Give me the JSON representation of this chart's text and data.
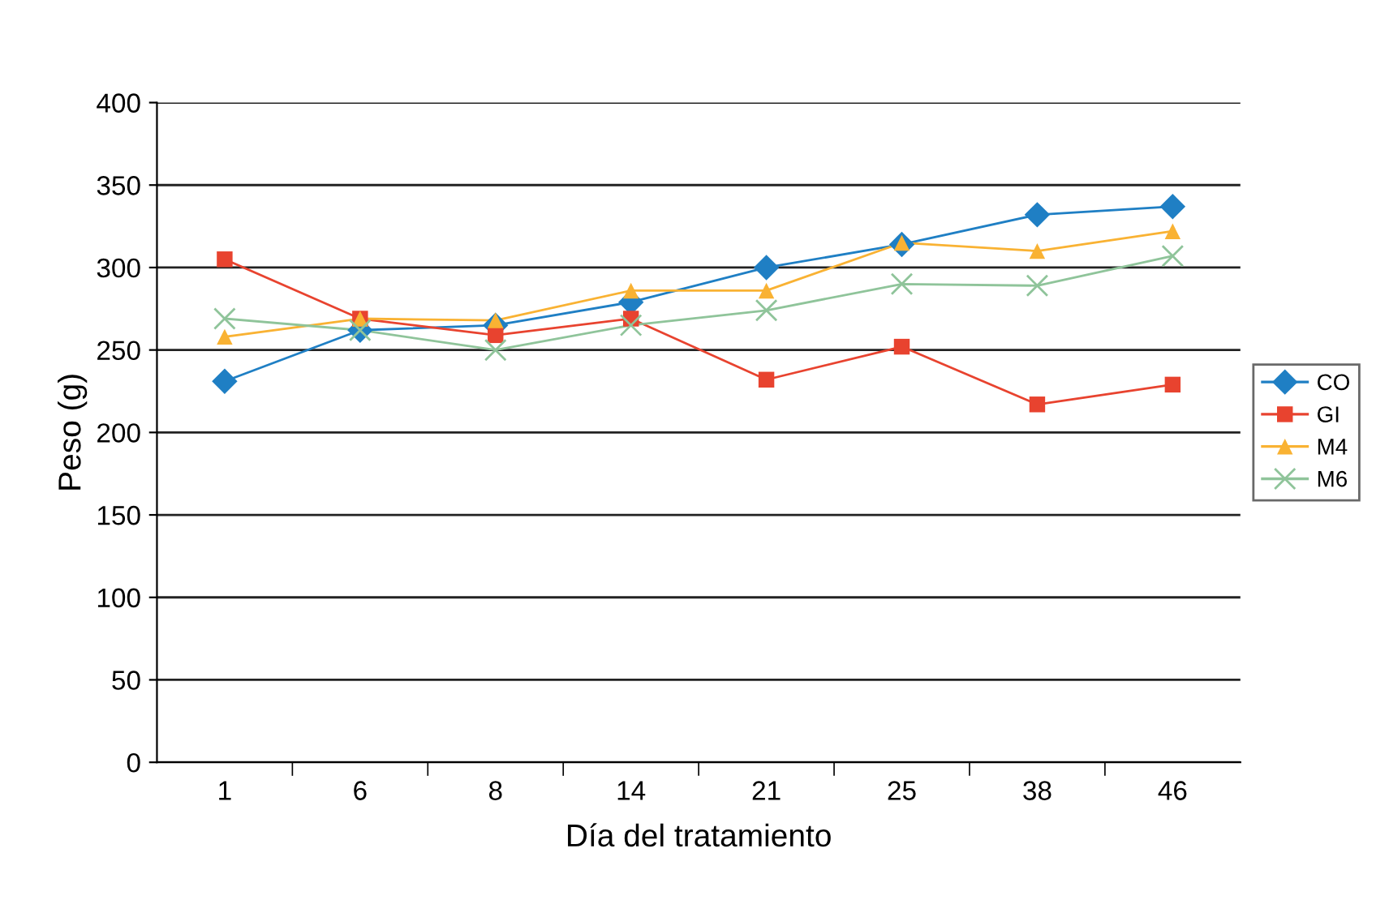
{
  "chart_data": {
    "type": "line",
    "xlabel": "Día del tratamiento",
    "ylabel": "Peso (g)",
    "categories": [
      "1",
      "6",
      "8",
      "14",
      "21",
      "25",
      "38",
      "46"
    ],
    "ylim": [
      0,
      400
    ],
    "yticks": [
      0,
      50,
      100,
      150,
      200,
      250,
      300,
      350,
      400
    ],
    "grid": "y",
    "legend": "right",
    "series": [
      {
        "name": "CO",
        "color": "#1f7fc4",
        "marker": "diamond",
        "values": [
          231,
          262,
          265,
          279,
          300,
          314,
          332,
          337
        ]
      },
      {
        "name": "GI",
        "color": "#e8432f",
        "marker": "square",
        "values": [
          305,
          269,
          259,
          269,
          232,
          252,
          217,
          229
        ]
      },
      {
        "name": "M4",
        "color": "#f9b233",
        "marker": "triangle",
        "values": [
          258,
          269,
          268,
          286,
          286,
          315,
          310,
          322
        ]
      },
      {
        "name": "M6",
        "color": "#8fc49a",
        "marker": "cross",
        "values": [
          269,
          262,
          250,
          265,
          274,
          290,
          289,
          307
        ]
      }
    ]
  }
}
